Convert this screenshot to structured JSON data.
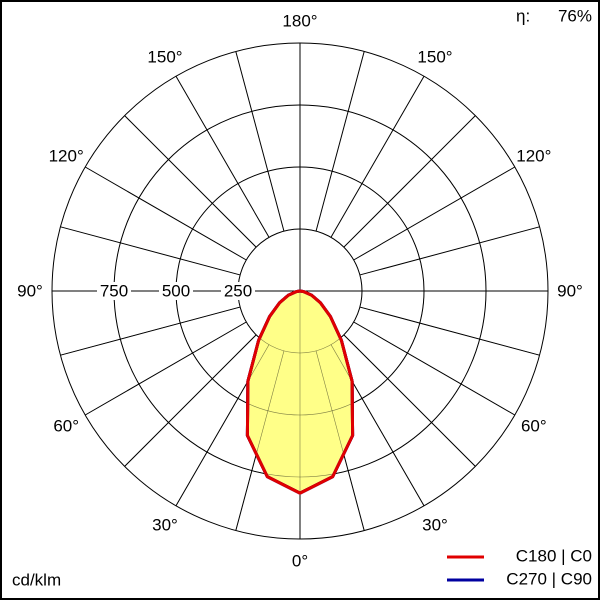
{
  "chart_data": {
    "type": "polar",
    "unit": "cd/klm",
    "efficiency": {
      "name": "η:",
      "value": 76,
      "label": "76%"
    },
    "angles": [
      -90,
      -80,
      -70,
      -60,
      -50,
      -40,
      -30,
      -20,
      -10,
      0,
      10,
      20,
      30,
      40,
      50,
      60,
      70,
      80,
      90
    ],
    "series": [
      {
        "name": "C270 | C90",
        "color": "#0000a0",
        "values": [
          0,
          15,
          50,
          95,
          160,
          260,
          420,
          620,
          760,
          815,
          760,
          620,
          420,
          260,
          160,
          95,
          50,
          15,
          0
        ]
      },
      {
        "name": "C180 | C0",
        "color": "#e00000",
        "fill": "#ffff88",
        "values": [
          0,
          15,
          50,
          95,
          160,
          260,
          420,
          620,
          760,
          815,
          760,
          620,
          420,
          260,
          160,
          95,
          50,
          15,
          0
        ]
      }
    ],
    "rlim": [
      0,
      1000
    ],
    "rticks": [
      250,
      500,
      750
    ],
    "angle_ticks": [
      {
        "value": 0,
        "label": "0°"
      },
      {
        "value": 30,
        "label": "30°"
      },
      {
        "value": 60,
        "label": "60°"
      },
      {
        "value": 90,
        "label": "90°"
      },
      {
        "value": 120,
        "label": "120°"
      },
      {
        "value": 150,
        "label": "150°"
      },
      {
        "value": 180,
        "label": "180°"
      }
    ]
  }
}
